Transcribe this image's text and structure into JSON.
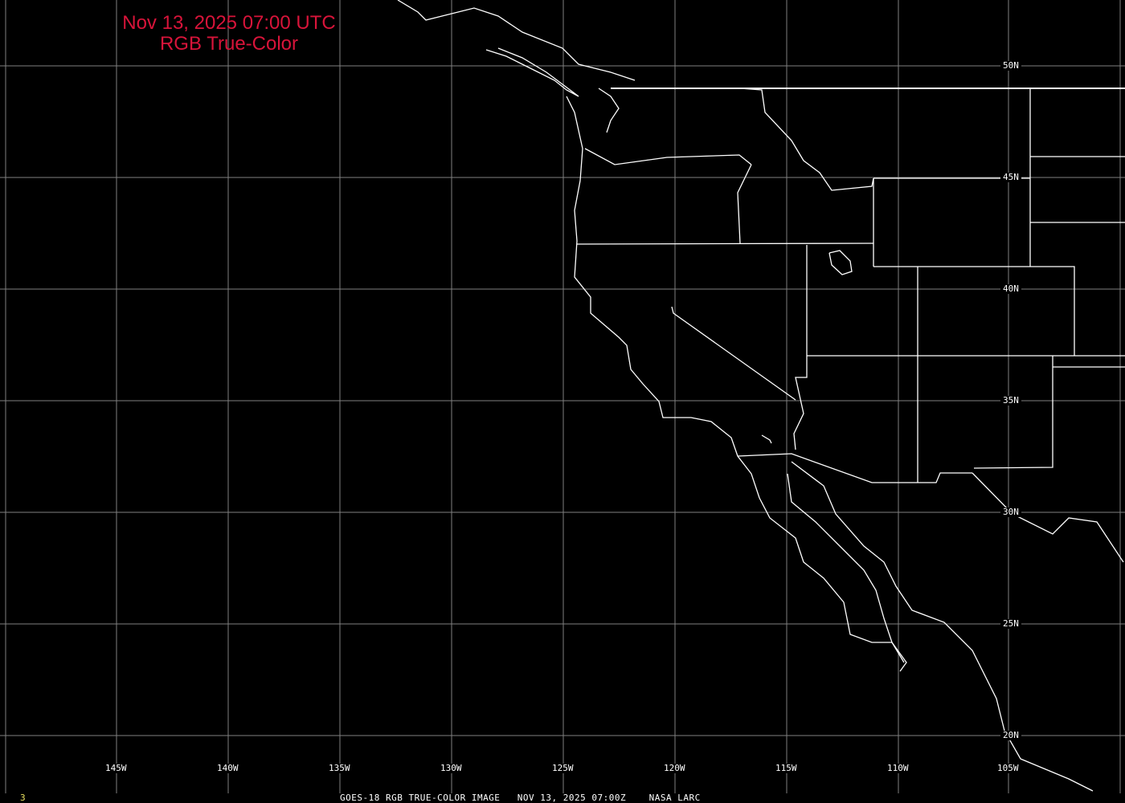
{
  "title": {
    "line1": "Nov 13, 2025 07:00 UTC",
    "line2": "RGB True-Color"
  },
  "lat_labels": [
    "50N",
    "45N",
    "40N",
    "35N",
    "30N",
    "25N",
    "20N"
  ],
  "lon_labels": [
    "145W",
    "140W",
    "135W",
    "130W",
    "125W",
    "120W",
    "115W",
    "110W",
    "105W"
  ],
  "footer": {
    "frame": "3",
    "caption": "GOES-18 RGB TRUE-COLOR IMAGE   NOV 13, 2025 07:00Z    NASA LARC"
  },
  "colors": {
    "background": "#000000",
    "grid": "#808080",
    "coast": "#ffffff",
    "title": "#d8143a",
    "frame": "#e8e060"
  }
}
